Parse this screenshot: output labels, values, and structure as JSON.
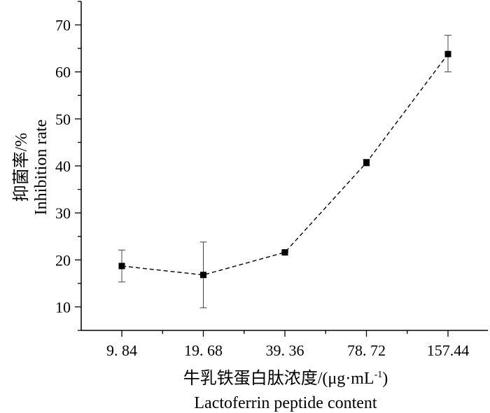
{
  "chart_data": {
    "type": "line",
    "categories": [
      "9. 84",
      "19. 68",
      "39. 36",
      "78. 72",
      "157.44"
    ],
    "series": [
      {
        "values": [
          18.7,
          16.8,
          21.6,
          40.7,
          63.8
        ],
        "error_low": [
          15.3,
          9.8,
          21.6,
          40.0,
          60.0
        ],
        "error_high": [
          22.1,
          23.8,
          21.9,
          41.4,
          67.8
        ],
        "line_style": "dashed",
        "marker": "square",
        "color": "#000000"
      }
    ],
    "xlabel": "牛乳铁蛋白肽浓度/(μg·mL",
    "xlabel_superscript": "-1",
    "xlabel_close": ")",
    "xlabel_en": "Lactoferrin peptide content",
    "ylabel": "抑菌率/%",
    "ylabel_en": "Inhibition rate",
    "ylim": [
      5,
      75
    ],
    "yticks": [
      10,
      20,
      30,
      40,
      50,
      60,
      70
    ],
    "grid": false
  }
}
